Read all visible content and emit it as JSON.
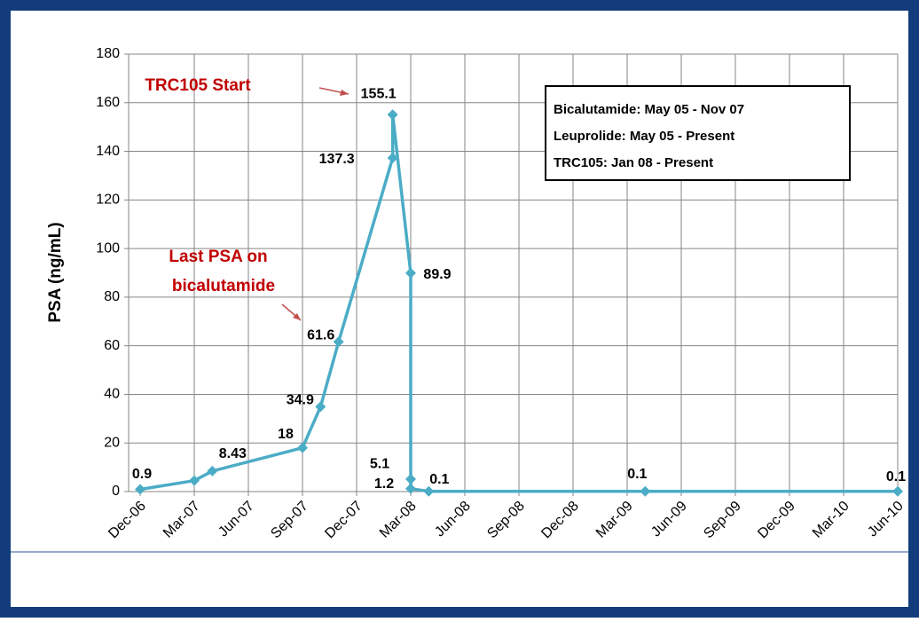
{
  "chart_data": {
    "type": "line",
    "y_label": "PSA (ng/mL)",
    "x": [
      "2006-12",
      "2007-03",
      "2007-04",
      "2007-09",
      "2007-10",
      "2007-11",
      "2008-02",
      "2008-02",
      "2008-03",
      "2008-03",
      "2008-03",
      "2008-04",
      "2009-04",
      "2010-06"
    ],
    "series": [
      {
        "name": "PSA",
        "color": "#4bacc6",
        "values": [
          0.9,
          4.5,
          8.43,
          18,
          34.9,
          61.6,
          137.3,
          155.1,
          89.9,
          5.1,
          1.2,
          0.1,
          0.1,
          0.1
        ],
        "value_labels": [
          "0.9",
          null,
          "8.43",
          "18",
          "34.9",
          "61.6",
          "137.3",
          "155.1",
          "89.9",
          "5.1",
          "1.2",
          "0.1",
          "0.1",
          "0.1"
        ]
      }
    ],
    "xlim": [
      "2006-12",
      "2010-06"
    ],
    "xticks": [
      {
        "value": "2006-12",
        "label": "Dec-06"
      },
      {
        "value": "2007-03",
        "label": "Mar-07"
      },
      {
        "value": "2007-06",
        "label": "Jun-07"
      },
      {
        "value": "2007-09",
        "label": "Sep-07"
      },
      {
        "value": "2007-12",
        "label": "Dec-07"
      },
      {
        "value": "2008-03",
        "label": "Mar-08"
      },
      {
        "value": "2008-06",
        "label": "Jun-08"
      },
      {
        "value": "2008-09",
        "label": "Sep-08"
      },
      {
        "value": "2008-12",
        "label": "Dec-08"
      },
      {
        "value": "2009-03",
        "label": "Mar-09"
      },
      {
        "value": "2009-06",
        "label": "Jun-09"
      },
      {
        "value": "2009-09",
        "label": "Sep-09"
      },
      {
        "value": "2009-12",
        "label": "Dec-09"
      },
      {
        "value": "2010-03",
        "label": "Mar-10"
      },
      {
        "value": "2010-06",
        "label": "Jun-10"
      }
    ],
    "ylim": [
      0,
      180
    ],
    "yticks": [
      0,
      20,
      40,
      60,
      80,
      100,
      120,
      140,
      160,
      180
    ],
    "grid": true,
    "annotations": [
      "TRC105 Start",
      "Last PSA on",
      "bicalutamide"
    ],
    "legend_box": [
      "Bicalutamide:  May 05 - Nov 07",
      "Leuprolide:  May 05 - Present",
      "TRC105:  Jan 08 - Present"
    ]
  }
}
